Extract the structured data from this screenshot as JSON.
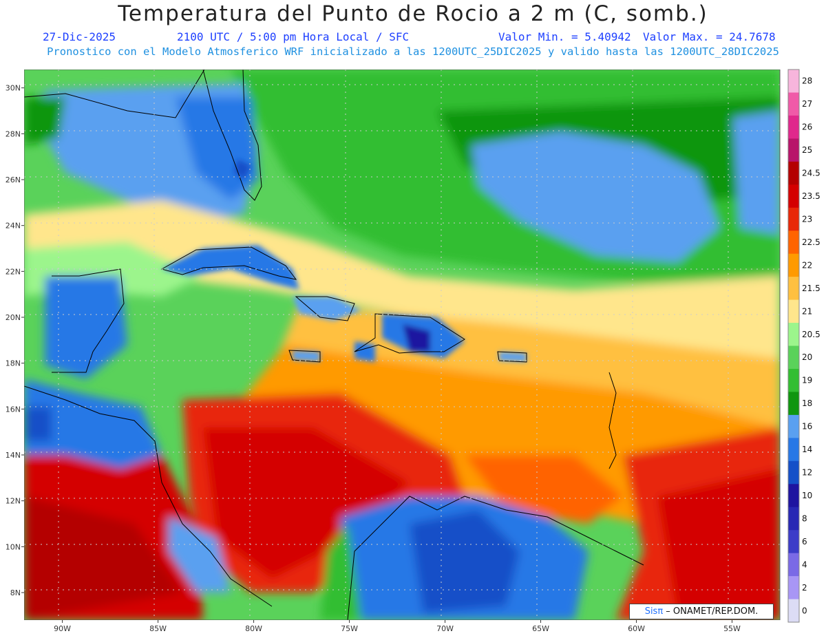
{
  "header": {
    "title": "Temperatura del Punto de Rocio a 2 m (C, somb.)",
    "date": "27-Dic-2025",
    "time": "2100 UTC / 5:00 pm Hora Local / SFC",
    "min": "Valor Min. = 5.40942",
    "max": "Valor Max. = 24.7678",
    "model_info": "Pronostico con el Modelo Atmosferico WRF inicializado a las 1200UTC_25DIC2025 y valido hasta las  1200UTC_28DIC2025"
  },
  "map": {
    "lon_range": [
      -92.0,
      -52.5
    ],
    "lat_range": [
      6.8,
      30.8
    ],
    "lon_ticks": [
      {
        "value": -90,
        "label": "90W"
      },
      {
        "value": -85,
        "label": "85W"
      },
      {
        "value": -80,
        "label": "80W"
      },
      {
        "value": -75,
        "label": "75W"
      },
      {
        "value": -70,
        "label": "70W"
      },
      {
        "value": -65,
        "label": "65W"
      },
      {
        "value": -60,
        "label": "60W"
      },
      {
        "value": -55,
        "label": "55W"
      }
    ],
    "lat_ticks": [
      {
        "value": 30,
        "label": "30N"
      },
      {
        "value": 28,
        "label": "28N"
      },
      {
        "value": 26,
        "label": "26N"
      },
      {
        "value": 24,
        "label": "24N"
      },
      {
        "value": 22,
        "label": "22N"
      },
      {
        "value": 20,
        "label": "20N"
      },
      {
        "value": 18,
        "label": "18N"
      },
      {
        "value": 16,
        "label": "16N"
      },
      {
        "value": 14,
        "label": "14N"
      },
      {
        "value": 12,
        "label": "12N"
      },
      {
        "value": 10,
        "label": "10N"
      },
      {
        "value": 8,
        "label": "8N"
      }
    ],
    "grid": true
  },
  "colorbar": {
    "labels": [
      "28",
      "27",
      "26",
      "25",
      "24.5",
      "23.5",
      "23",
      "22.5",
      "22",
      "21.5",
      "21",
      "20.5",
      "20",
      "19",
      "18",
      "16",
      "14",
      "12",
      "10",
      "8",
      "6",
      "4",
      "2",
      "0"
    ],
    "colors": [
      "#f7b5dc",
      "#f05aa8",
      "#e0288c",
      "#b8146a",
      "#b40000",
      "#d40000",
      "#e82808",
      "#ff6400",
      "#ff9a00",
      "#ffc040",
      "#ffe68c",
      "#9cf58c",
      "#5ad25a",
      "#32be32",
      "#109610",
      "#5aa0f0",
      "#2878e6",
      "#1450c8",
      "#1e14a0",
      "#2828b4",
      "#3c3cc8",
      "#7a6ae6",
      "#a896f5",
      "#dcdcf5"
    ]
  },
  "credit": {
    "brand": "Sisπ",
    "org": " – ONAMET/REP.DOM."
  }
}
